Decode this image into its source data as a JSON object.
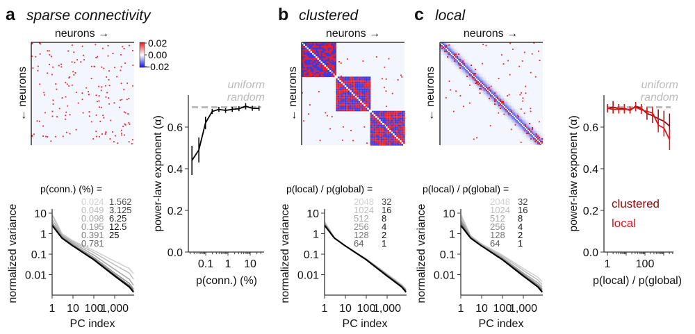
{
  "panels": {
    "a": {
      "letter": "a",
      "title": "sparse connectivity"
    },
    "b": {
      "letter": "b",
      "title": "clustered"
    },
    "c": {
      "letter": "c",
      "title": "local"
    }
  },
  "matrix_labels": {
    "x": "neurons →",
    "y": "← neurons"
  },
  "colorbar": {
    "ticks": [
      "0.02",
      "0.00",
      "−0.02"
    ],
    "colors": {
      "high": "#e8141c",
      "mid": "#ffffff",
      "low": "#1010e0"
    }
  },
  "uniform_random_label": [
    "uniform",
    "random"
  ],
  "colors": {
    "clustered": "#8b0a0a",
    "local": "#e0161b",
    "reference": "#bbbbbb"
  },
  "chart_data": [
    {
      "type": "line",
      "id": "spectrum-a",
      "xlabel": "PC index",
      "ylabel": "normalized variance",
      "xscale": "log",
      "yscale": "log",
      "xticks": [
        "1",
        "10",
        "100",
        "1,000"
      ],
      "yticks": [
        "10",
        "1",
        "0.1",
        "0.01"
      ],
      "legend_title": "p(conn.) (%) =",
      "legend_col1": [
        "0.024",
        "0.049",
        "0.098",
        "0.195",
        "0.391",
        "0.781"
      ],
      "legend_col2": [
        "1.562",
        "3.125",
        "6.25",
        "12.5",
        "25"
      ],
      "x": [
        1,
        3,
        10,
        100,
        1000,
        5000,
        8000
      ],
      "series": [
        {
          "name": "0.024",
          "color": "#cfcfcf",
          "values": [
            9,
            1.0,
            0.45,
            0.15,
            0.045,
            0.02,
            0.011
          ]
        },
        {
          "name": "0.049",
          "color": "#bdbdbd",
          "values": [
            8,
            0.9,
            0.4,
            0.12,
            0.03,
            0.012,
            0.006
          ]
        },
        {
          "name": "0.098",
          "color": "#a8a8a8",
          "values": [
            5,
            0.8,
            0.35,
            0.09,
            0.018,
            0.006,
            0.003
          ]
        },
        {
          "name": "0.195",
          "color": "#939393",
          "values": [
            3.5,
            0.7,
            0.3,
            0.07,
            0.012,
            0.0038,
            0.002
          ]
        },
        {
          "name": "0.391",
          "color": "#7d7d7d",
          "values": [
            3,
            0.65,
            0.27,
            0.06,
            0.01,
            0.003,
            0.0017
          ]
        },
        {
          "name": "0.781",
          "color": "#666666",
          "values": [
            2.7,
            0.62,
            0.26,
            0.057,
            0.0095,
            0.0028,
            0.0016
          ]
        },
        {
          "name": "1.562",
          "color": "#505050",
          "values": [
            2.6,
            0.6,
            0.25,
            0.055,
            0.009,
            0.0026,
            0.0015
          ]
        },
        {
          "name": "3.125",
          "color": "#3c3c3c",
          "values": [
            2.5,
            0.6,
            0.25,
            0.054,
            0.0088,
            0.0026,
            0.0015
          ]
        },
        {
          "name": "6.25",
          "color": "#282828",
          "values": [
            2.5,
            0.6,
            0.25,
            0.054,
            0.0087,
            0.0025,
            0.0014
          ]
        },
        {
          "name": "12.5",
          "color": "#141414",
          "values": [
            2.5,
            0.6,
            0.25,
            0.053,
            0.0086,
            0.0025,
            0.0014
          ]
        },
        {
          "name": "25",
          "color": "#000000",
          "values": [
            2.5,
            0.6,
            0.25,
            0.053,
            0.0085,
            0.0025,
            0.0014
          ]
        }
      ]
    },
    {
      "type": "line",
      "id": "alpha-a",
      "xlabel": "p(conn.) (%)",
      "ylabel": "power-law exponent (α)",
      "xscale": "log",
      "xticks": [
        "0.1",
        "1",
        "10"
      ],
      "yticks": [
        "0.0",
        "0.2",
        "0.4",
        "0.6"
      ],
      "ylim": [
        0,
        0.75
      ],
      "reference": 0.695,
      "x": [
        0.024,
        0.049,
        0.098,
        0.195,
        0.391,
        0.781,
        1.562,
        3.125,
        6.25,
        12.5,
        25
      ],
      "values": [
        0.44,
        0.49,
        0.62,
        0.675,
        0.685,
        0.68,
        0.685,
        0.688,
        0.7,
        0.69,
        0.69
      ],
      "errors": [
        0.07,
        0.06,
        0.03,
        0.012,
        0.012,
        0.012,
        0.012,
        0.012,
        0.015,
        0.012,
        0.012
      ]
    },
    {
      "type": "line",
      "id": "spectrum-b",
      "xlabel": "PC index",
      "ylabel": "normalized variance",
      "xscale": "log",
      "yscale": "log",
      "xticks": [
        "1",
        "10",
        "100",
        "1,000"
      ],
      "yticks": [
        "10",
        "1",
        "0.1",
        "0.01"
      ],
      "legend_title": "p(local) / p(global) =",
      "legend_col1": [
        "2048",
        "1024",
        "512",
        "256",
        "128",
        "64"
      ],
      "legend_col2": [
        "32",
        "16",
        "8",
        "4",
        "2",
        "1"
      ],
      "x": [
        1,
        3,
        10,
        100,
        1000,
        5000,
        8000
      ],
      "series": [
        {
          "name": "2048",
          "color": "#d0d0d0",
          "values": [
            4,
            0.65,
            0.26,
            0.06,
            0.011,
            0.0033,
            0.002
          ]
        },
        {
          "name": "1024",
          "color": "#bdbdbd",
          "values": [
            3.6,
            0.63,
            0.26,
            0.058,
            0.0105,
            0.003,
            0.0019
          ]
        },
        {
          "name": "512",
          "color": "#a5a5a5",
          "values": [
            3.2,
            0.62,
            0.255,
            0.057,
            0.01,
            0.0029,
            0.0018
          ]
        },
        {
          "name": "256",
          "color": "#8d8d8d",
          "values": [
            3,
            0.61,
            0.25,
            0.056,
            0.0095,
            0.0028,
            0.0017
          ]
        },
        {
          "name": "128",
          "color": "#757575",
          "values": [
            2.8,
            0.6,
            0.25,
            0.055,
            0.0092,
            0.0027,
            0.0016
          ]
        },
        {
          "name": "64",
          "color": "#5e5e5e",
          "values": [
            2.7,
            0.6,
            0.25,
            0.054,
            0.009,
            0.0026,
            0.0015
          ]
        },
        {
          "name": "32",
          "color": "#474747",
          "values": [
            2.6,
            0.6,
            0.25,
            0.054,
            0.0088,
            0.0025,
            0.0015
          ]
        },
        {
          "name": "16",
          "color": "#303030",
          "values": [
            2.5,
            0.6,
            0.25,
            0.053,
            0.0087,
            0.0025,
            0.0014
          ]
        },
        {
          "name": "8",
          "color": "#202020",
          "values": [
            2.5,
            0.6,
            0.25,
            0.053,
            0.0086,
            0.0025,
            0.0014
          ]
        },
        {
          "name": "4",
          "color": "#141414",
          "values": [
            2.5,
            0.6,
            0.25,
            0.053,
            0.0086,
            0.0025,
            0.0014
          ]
        },
        {
          "name": "2",
          "color": "#0a0a0a",
          "values": [
            2.5,
            0.6,
            0.25,
            0.053,
            0.0085,
            0.0025,
            0.0014
          ]
        },
        {
          "name": "1",
          "color": "#000000",
          "values": [
            2.5,
            0.6,
            0.25,
            0.053,
            0.0085,
            0.0025,
            0.0014
          ]
        }
      ]
    },
    {
      "type": "line",
      "id": "spectrum-c",
      "xlabel": "PC index",
      "ylabel": "normalized variance",
      "xscale": "log",
      "yscale": "log",
      "xticks": [
        "1",
        "10",
        "100",
        "1,000"
      ],
      "yticks": [
        "10",
        "1",
        "0.1",
        "0.01"
      ],
      "legend_title": "p(local) / p(global) =",
      "legend_col1": [
        "2048",
        "1024",
        "512",
        "256",
        "128",
        "64"
      ],
      "legend_col2": [
        "32",
        "16",
        "8",
        "4",
        "2",
        "1"
      ],
      "x": [
        1,
        3,
        10,
        100,
        1000,
        5000,
        8000
      ],
      "series": [
        {
          "name": "2048",
          "color": "#d0d0d0",
          "values": [
            9,
            0.8,
            0.32,
            0.09,
            0.02,
            0.0075,
            0.0045
          ]
        },
        {
          "name": "1024",
          "color": "#bdbdbd",
          "values": [
            7,
            0.75,
            0.3,
            0.08,
            0.016,
            0.0055,
            0.0033
          ]
        },
        {
          "name": "512",
          "color": "#a5a5a5",
          "values": [
            5,
            0.7,
            0.28,
            0.068,
            0.012,
            0.004,
            0.0025
          ]
        },
        {
          "name": "256",
          "color": "#8d8d8d",
          "values": [
            4,
            0.65,
            0.26,
            0.06,
            0.0105,
            0.0032,
            0.002
          ]
        },
        {
          "name": "128",
          "color": "#757575",
          "values": [
            3.2,
            0.62,
            0.255,
            0.057,
            0.0095,
            0.0028,
            0.0017
          ]
        },
        {
          "name": "64",
          "color": "#5e5e5e",
          "values": [
            2.8,
            0.6,
            0.25,
            0.055,
            0.009,
            0.0026,
            0.0016
          ]
        },
        {
          "name": "32",
          "color": "#474747",
          "values": [
            2.6,
            0.6,
            0.25,
            0.054,
            0.0088,
            0.0025,
            0.0015
          ]
        },
        {
          "name": "16",
          "color": "#303030",
          "values": [
            2.5,
            0.6,
            0.25,
            0.053,
            0.0087,
            0.0025,
            0.0014
          ]
        },
        {
          "name": "8",
          "color": "#202020",
          "values": [
            2.5,
            0.6,
            0.25,
            0.053,
            0.0086,
            0.0025,
            0.0014
          ]
        },
        {
          "name": "4",
          "color": "#141414",
          "values": [
            2.5,
            0.6,
            0.25,
            0.053,
            0.0086,
            0.0025,
            0.0014
          ]
        },
        {
          "name": "2",
          "color": "#0a0a0a",
          "values": [
            2.5,
            0.6,
            0.25,
            0.053,
            0.0085,
            0.0025,
            0.0014
          ]
        },
        {
          "name": "1",
          "color": "#000000",
          "values": [
            2.5,
            0.6,
            0.25,
            0.053,
            0.0085,
            0.0025,
            0.0014
          ]
        }
      ]
    },
    {
      "type": "line",
      "id": "alpha-bc",
      "xlabel": "p(local) / p(global)",
      "ylabel": "power-law exponent (α)",
      "xscale": "log",
      "xticks": [
        "1",
        "100"
      ],
      "yticks": [
        "0.0",
        "0.2",
        "0.4",
        "0.6"
      ],
      "ylim": [
        0,
        0.75
      ],
      "reference": 0.695,
      "x": [
        1,
        2,
        4,
        8,
        16,
        32,
        64,
        128,
        256,
        512,
        1024,
        2048
      ],
      "series": [
        {
          "name": "clustered",
          "color": "#8b0a0a",
          "values": [
            0.69,
            0.695,
            0.69,
            0.69,
            0.68,
            0.7,
            0.69,
            0.665,
            0.655,
            0.64,
            0.628,
            0.605
          ],
          "errors": [
            0.02,
            0.03,
            0.02,
            0.02,
            0.015,
            0.02,
            0.02,
            0.03,
            0.035,
            0.045,
            0.05,
            0.06
          ]
        },
        {
          "name": "local",
          "color": "#e0161b",
          "values": [
            0.69,
            0.685,
            0.685,
            0.685,
            0.685,
            0.695,
            0.683,
            0.675,
            0.668,
            0.61,
            0.595,
            0.54
          ],
          "errors": [
            0.02,
            0.02,
            0.02,
            0.02,
            0.015,
            0.02,
            0.02,
            0.02,
            0.03,
            0.035,
            0.04,
            0.05
          ]
        }
      ]
    }
  ]
}
